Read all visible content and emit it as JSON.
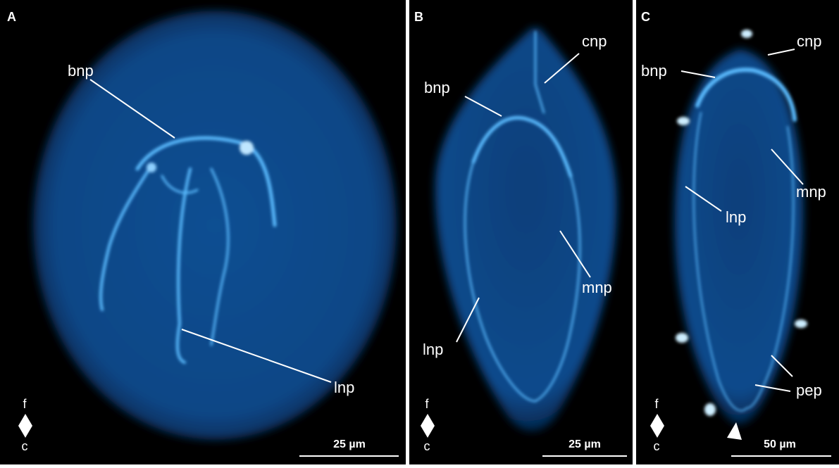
{
  "panels": [
    {
      "letter": "A",
      "labels": [
        "bnp",
        "lnp"
      ],
      "scale_bar": "25 µm",
      "orientation": {
        "top": "f",
        "bottom": "c"
      }
    },
    {
      "letter": "B",
      "labels": [
        "cnp",
        "bnp",
        "mnp",
        "lnp"
      ],
      "scale_bar": "25 µm",
      "orientation": {
        "top": "f",
        "bottom": "c"
      }
    },
    {
      "letter": "C",
      "labels": [
        "cnp",
        "bnp",
        "mnp",
        "lnp",
        "pep"
      ],
      "scale_bar": "50 µm",
      "orientation": {
        "top": "f",
        "bottom": "c"
      }
    }
  ]
}
